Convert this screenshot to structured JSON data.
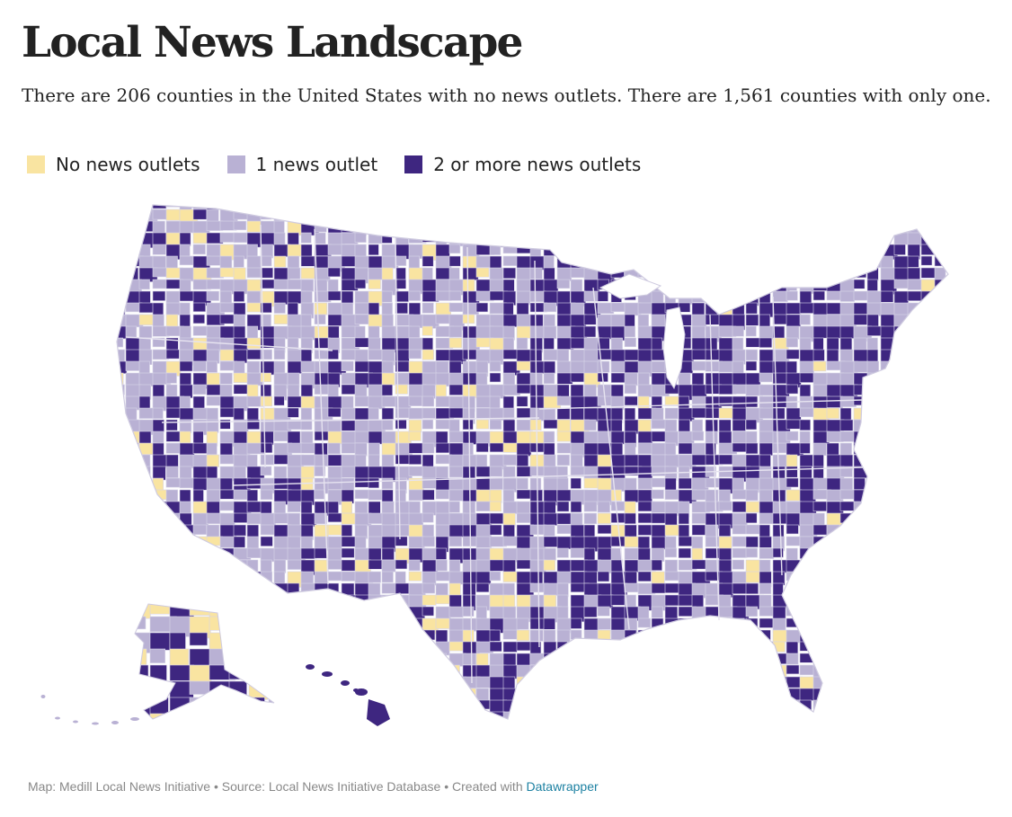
{
  "header": {
    "title": "Local News Landscape",
    "subtitle": "There are 206 counties in the United States with no news outlets. There are 1,561 counties with only one."
  },
  "legend": {
    "items": [
      {
        "label": "No news outlets",
        "color": "#f9e4a1"
      },
      {
        "label": "1 news outlet",
        "color": "#b9b1d4"
      },
      {
        "label": "2 or more news outlets",
        "color": "#3e2680"
      }
    ]
  },
  "map": {
    "type": "choropleth",
    "region": "United States counties",
    "categories": [
      "No news outlets",
      "1 news outlet",
      "2 or more news outlets"
    ],
    "colors": {
      "none": "#f9e4a1",
      "one": "#b9b1d4",
      "many": "#3e2680",
      "border": "#d8d4e8"
    }
  },
  "footer": {
    "credit": "Map: Medill Local News Initiative • Source: Local News Initiative Database • Created with ",
    "link_text": "Datawrapper"
  }
}
